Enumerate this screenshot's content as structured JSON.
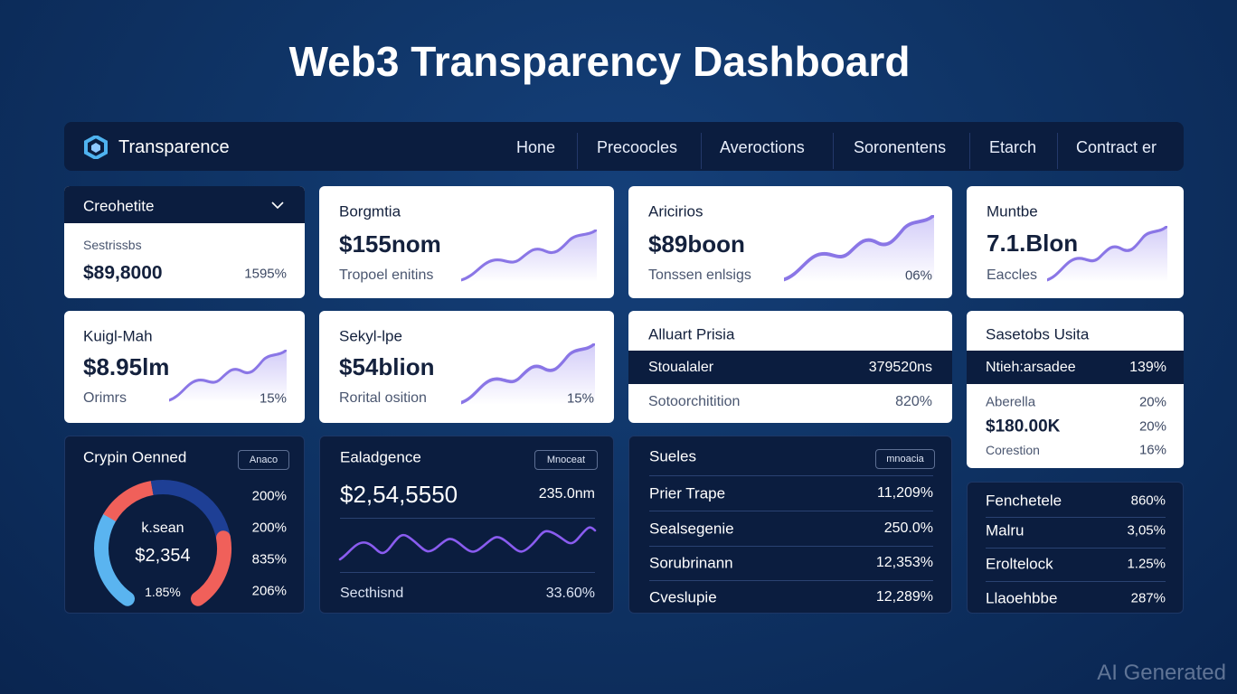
{
  "header": {
    "title": "Web3 Transparency Dashboard"
  },
  "nav": {
    "brand": "Transparence",
    "links": [
      "Hone",
      "Precoocles",
      "Averoctions",
      "Soronentens",
      "Etarch",
      "Contract er"
    ]
  },
  "cards": [
    {
      "title": "Creohetite",
      "label": "Sestrissbs",
      "value": "$89,8000",
      "change": "1595%"
    },
    {
      "title": "Borgmtia",
      "value": "$155nom",
      "subtitle": "Tropoel enitins"
    },
    {
      "title": "Aricirios",
      "value": "$89boon",
      "subtitle": "Tonssen enlsigs",
      "change": "06%"
    },
    {
      "title": "Muntbe",
      "value": "7.1.Blon",
      "subtitle": "Eaccles"
    },
    {
      "title": "Kuigl-Mah",
      "value": "$8.95lm",
      "subtitle": "Orimrs",
      "change": "15%"
    },
    {
      "title": "Sekyl-lpe",
      "value": "$54blion",
      "subtitle": "Rorital osition",
      "change": "15%"
    },
    {
      "title": "Alluart Prisia",
      "rows": [
        [
          "Stoualaler",
          "379520ns"
        ],
        [
          "Sotoorchitition",
          "820%"
        ]
      ]
    },
    {
      "title": "Sasetobs Usita",
      "rows": [
        [
          "Ntieh:arsadee",
          "139%"
        ],
        [
          "Aberella",
          "20%"
        ],
        [
          "$180.00K",
          "20%"
        ],
        [
          "Corestion",
          "16%"
        ]
      ]
    },
    {
      "title": "Crypin Oenned",
      "badge": "Anaco",
      "gauge": {
        "label": "k.sean",
        "value": "$2,354",
        "change": "1.85%"
      },
      "list": [
        "200%",
        "200%",
        "835%",
        "206%"
      ]
    },
    {
      "title": "Ealadgence",
      "badge": "Mnoceat",
      "value": "$2,54,5550",
      "unit": "235.0nm",
      "footer": [
        "Secthisnd",
        "33.60%"
      ]
    },
    {
      "title": "Sueles",
      "badge": "mnoacia",
      "rows": [
        [
          "Prier Trape",
          "11,209%"
        ],
        [
          "Sealsegenie",
          "250.0%"
        ],
        [
          "Sorubrinann",
          "12,353%"
        ],
        [
          "Cveslupie",
          "12,289%"
        ]
      ]
    },
    {
      "rows": [
        [
          "Fenchetele",
          "860%"
        ],
        [
          "Malru",
          "3,05%"
        ],
        [
          "Eroltelock",
          "1.25%"
        ],
        [
          "Llaoehbbe",
          "287%"
        ]
      ]
    }
  ],
  "watermark": "AI Generated"
}
